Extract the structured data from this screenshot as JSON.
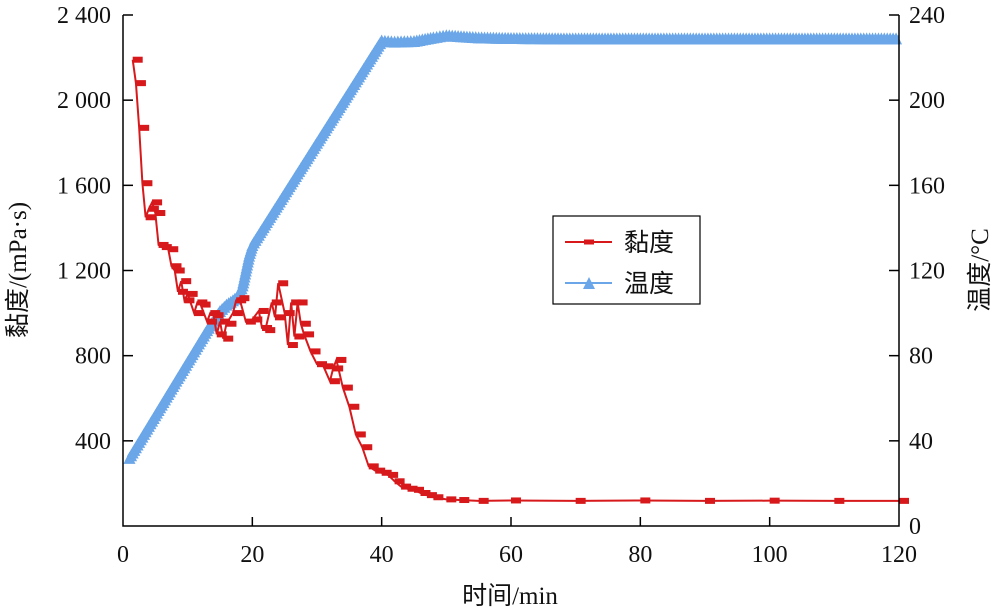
{
  "chart_data": {
    "type": "line",
    "title": "",
    "xlabel": "时间/min",
    "ylabel": "黏度/(mPa·s)",
    "y2label": "温度/°C",
    "xlim": [
      0,
      120
    ],
    "ylim": [
      0,
      2400
    ],
    "y2lim": [
      0,
      240
    ],
    "xticks": [
      "0",
      "20",
      "40",
      "60",
      "80",
      "100",
      "120"
    ],
    "yticks": [
      "400",
      "800",
      "1 200",
      "1 600",
      "2 000",
      "2 400"
    ],
    "y2ticks": [
      "0",
      "40",
      "80",
      "120",
      "160",
      "200",
      "240"
    ],
    "grid": false,
    "legend_position": "center-right",
    "series": [
      {
        "name": "黏度",
        "axis": "left",
        "color": "#d7191c",
        "marker": "dash",
        "x": [
          1.5,
          2,
          2.5,
          3,
          3.5,
          4,
          4.5,
          5,
          5.5,
          6,
          7,
          7.5,
          8,
          8.5,
          9,
          9.5,
          10,
          11,
          11.5,
          12,
          13,
          13.5,
          14,
          14.5,
          15,
          15.5,
          16,
          17,
          17.5,
          18,
          19,
          20,
          21,
          21.5,
          22,
          23,
          23.5,
          24,
          25,
          25.5,
          26,
          26.5,
          27,
          27.5,
          28,
          29,
          30,
          31,
          32,
          32.5,
          33,
          34,
          35,
          36,
          37,
          38,
          39,
          40,
          41,
          42,
          43,
          44,
          45,
          46,
          47,
          48,
          50,
          52,
          55,
          60,
          70,
          80,
          90,
          100,
          110,
          120
        ],
        "y": [
          2190,
          2080,
          1870,
          1610,
          1450,
          1490,
          1520,
          1470,
          1320,
          1310,
          1300,
          1220,
          1200,
          1100,
          1150,
          1060,
          1090,
          1000,
          1050,
          1040,
          960,
          1000,
          990,
          900,
          960,
          880,
          950,
          1000,
          1060,
          1070,
          960,
          970,
          1010,
          930,
          920,
          1050,
          980,
          1140,
          1000,
          850,
          1050,
          890,
          1050,
          950,
          900,
          820,
          760,
          750,
          680,
          740,
          780,
          650,
          560,
          430,
          370,
          280,
          260,
          250,
          240,
          210,
          185,
          175,
          170,
          155,
          145,
          135,
          125,
          122,
          118,
          120,
          118,
          120,
          118,
          119,
          118,
          118
        ]
      },
      {
        "name": "温度",
        "axis": "right",
        "color": "#6aa6e8",
        "marker": "triangle",
        "x": [
          1,
          3,
          5,
          7,
          9,
          11,
          13,
          15,
          16,
          17,
          17.6,
          18,
          18.5,
          19,
          19.5,
          20,
          22,
          24,
          26,
          28,
          30,
          32,
          34,
          36,
          38,
          40,
          42,
          45,
          48,
          50,
          55,
          60,
          70,
          80,
          90,
          100,
          110,
          120
        ],
        "y": [
          32,
          42,
          52,
          62,
          72,
          82,
          92,
          101,
          104,
          106,
          107.5,
          109,
          113,
          120,
          127,
          132,
          141.6,
          151.2,
          160.8,
          170.4,
          180,
          189.6,
          199.2,
          208.8,
          218.4,
          228,
          227.5,
          227.8,
          229.5,
          230.5,
          229.5,
          229.2,
          229,
          229,
          229,
          229,
          229,
          229
        ]
      }
    ]
  }
}
